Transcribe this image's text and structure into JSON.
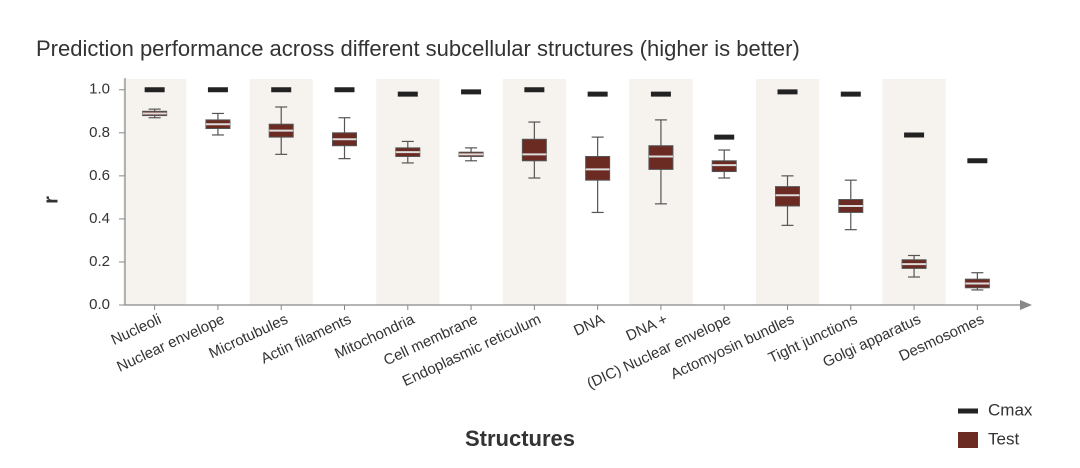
{
  "chart_data": {
    "type": "box",
    "title": "Prediction performance across different subcellular structures (higher is better)",
    "xlabel": "Structures",
    "ylabel": "r",
    "categories": [
      "Nucleoli",
      "Nuclear envelope",
      "Microtubules",
      "Actin filaments",
      "Mitochondria",
      "Cell membrane",
      "Endoplasmic reticulum",
      "DNA",
      "DNA +",
      "(DIC) Nuclear envelope",
      "Actomyosin bundles",
      "Tight junctions",
      "Golgi apparatus",
      "Desmosomes"
    ],
    "ylim": [
      0,
      1.05
    ],
    "yticks": [
      {
        "value": 0,
        "label": "0.0"
      },
      0.2,
      0.4,
      0.6,
      0.8,
      {
        "value": 1,
        "label": "1.0"
      }
    ],
    "series": [
      {
        "name": "Cmax",
        "color": "#222222",
        "values": [
          1.0,
          1.0,
          1.0,
          1.0,
          0.98,
          0.99,
          1.0,
          0.98,
          0.98,
          0.78,
          0.99,
          0.98,
          0.79,
          0.67
        ]
      },
      {
        "name": "Test",
        "color": "#6b2a22",
        "whislo": [
          0.87,
          0.79,
          0.7,
          0.68,
          0.66,
          0.67,
          0.59,
          0.43,
          0.47,
          0.59,
          0.37,
          0.35,
          0.13,
          0.07
        ],
        "q1": [
          0.88,
          0.82,
          0.78,
          0.74,
          0.69,
          0.69,
          0.67,
          0.58,
          0.63,
          0.62,
          0.46,
          0.43,
          0.17,
          0.08
        ],
        "median": [
          0.89,
          0.84,
          0.81,
          0.77,
          0.71,
          0.7,
          0.7,
          0.63,
          0.69,
          0.65,
          0.51,
          0.46,
          0.19,
          0.1
        ],
        "q3": [
          0.9,
          0.86,
          0.84,
          0.8,
          0.73,
          0.71,
          0.77,
          0.69,
          0.74,
          0.67,
          0.55,
          0.49,
          0.21,
          0.12
        ],
        "whishi": [
          0.91,
          0.89,
          0.92,
          0.87,
          0.76,
          0.73,
          0.85,
          0.78,
          0.86,
          0.72,
          0.6,
          0.58,
          0.23,
          0.15
        ]
      }
    ],
    "legend": "bottom-right"
  }
}
